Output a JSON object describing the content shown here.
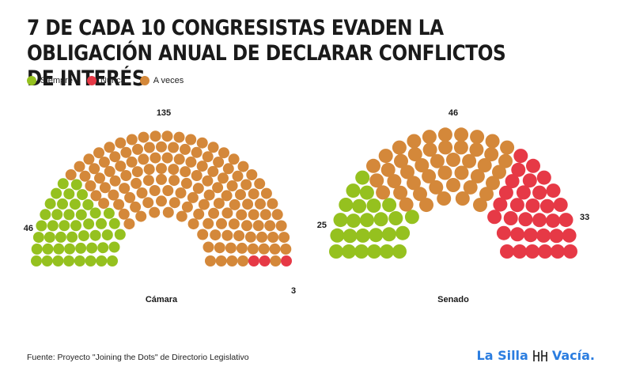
{
  "title": "7 DE CADA 10 CONGRESISTAS EVADEN LA OBLIGACIÓN ANUAL DE DECLARAR CONFLICTOS DE INTERÉS",
  "legend": [
    {
      "label": "Siempre",
      "color": "#95c11f"
    },
    {
      "label": "Nunca",
      "color": "#e63946"
    },
    {
      "label": "A veces",
      "color": "#d4883a"
    }
  ],
  "source": "Fuente: Proyecto \"Joining the Dots\" de Directorio Legislativo",
  "brand": {
    "left": "La Silla",
    "right": "Vacía."
  },
  "chart_data": [
    {
      "type": "parliament",
      "name": "Cámara",
      "series": [
        {
          "name": "Siempre",
          "value": 46,
          "color": "#95c11f"
        },
        {
          "name": "A veces",
          "value": 135,
          "color": "#d4883a"
        },
        {
          "name": "Nunca",
          "value": 3,
          "color": "#e63946"
        }
      ]
    },
    {
      "type": "parliament",
      "name": "Senado",
      "series": [
        {
          "name": "Siempre",
          "value": 25,
          "color": "#95c11f"
        },
        {
          "name": "A veces",
          "value": 46,
          "color": "#d4883a"
        },
        {
          "name": "Nunca",
          "value": 33,
          "color": "#e63946"
        }
      ]
    }
  ]
}
